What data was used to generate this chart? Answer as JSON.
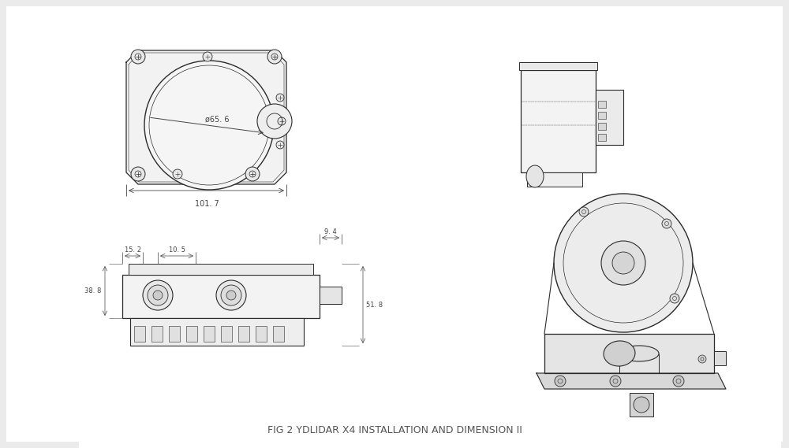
{
  "bg_color": "#ebebeb",
  "title": "FIG 2 YDLIDAR X4 INSTALLATION AND DIMENSION II",
  "title_color": "#555555",
  "title_fontsize": 9,
  "line_color": "#2a2a2a",
  "dim_color": "#444444",
  "drawing_bg": "#ffffff",
  "annotations": {
    "diameter": "ø65. 6",
    "width_bottom": "101. 7",
    "dim_152": "15. 2",
    "dim_105": "10. 5",
    "dim_94": "9. 4",
    "dim_388": "38. 8",
    "dim_518": "51. 8"
  }
}
